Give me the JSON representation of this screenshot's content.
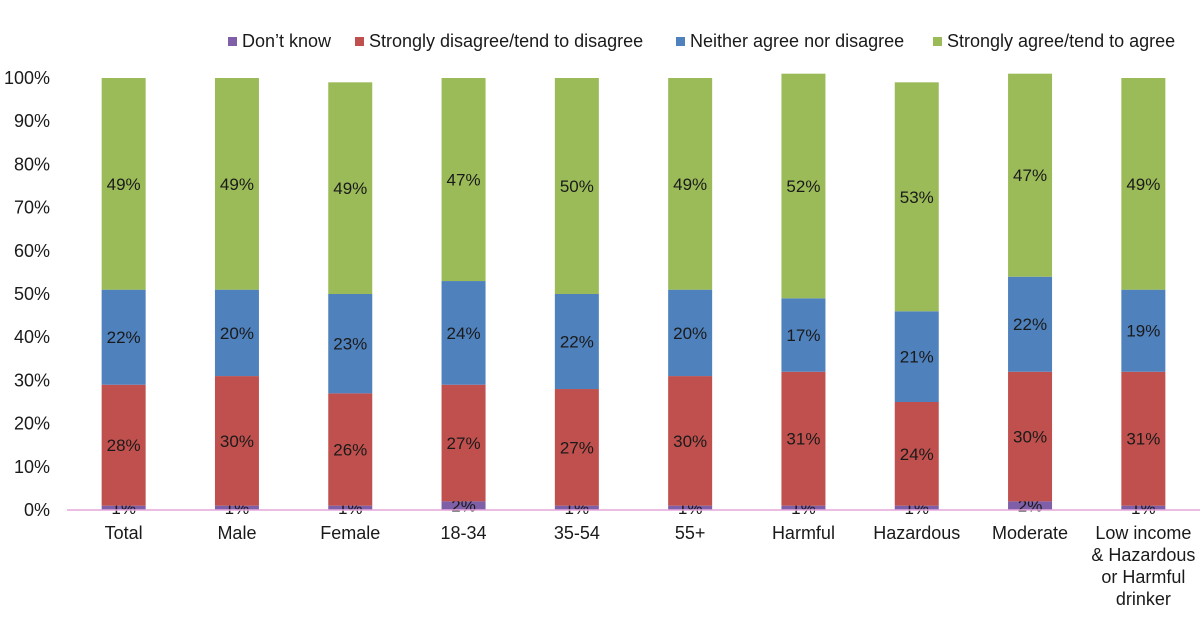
{
  "chart_data": {
    "type": "bar",
    "stacked": true,
    "title": "",
    "xlabel": "",
    "ylabel": "",
    "ylim": [
      0,
      100
    ],
    "yticks": [
      "0%",
      "10%",
      "20%",
      "30%",
      "40%",
      "50%",
      "60%",
      "70%",
      "80%",
      "90%",
      "100%"
    ],
    "categories": [
      "Total",
      "Male",
      "Female",
      "18-34",
      "35-54",
      "55+",
      "Harmful",
      "Hazardous",
      "Moderate",
      "Low income & Hazardous or Harmful drinker"
    ],
    "category_lines": [
      [
        "Total"
      ],
      [
        "Male"
      ],
      [
        "Female"
      ],
      [
        "18-34"
      ],
      [
        "35-54"
      ],
      [
        "55+"
      ],
      [
        "Harmful"
      ],
      [
        "Hazardous"
      ],
      [
        "Moderate"
      ],
      [
        "Low income",
        "& Hazardous",
        "or Harmful",
        "drinker"
      ]
    ],
    "legend_position": "top",
    "series": [
      {
        "name": "Don’t know",
        "color": "#7f5fa8",
        "values": [
          1,
          1,
          1,
          2,
          1,
          1,
          1,
          1,
          2,
          1
        ],
        "labels": [
          "1%",
          "1%",
          "1%",
          "2%",
          "1%",
          "1%",
          "1%",
          "1%",
          "2%",
          "1%"
        ]
      },
      {
        "name": "Strongly disagree/tend to disagree",
        "color": "#c0504d",
        "values": [
          28,
          30,
          26,
          27,
          27,
          30,
          31,
          24,
          30,
          31
        ],
        "labels": [
          "28%",
          "30%",
          "26%",
          "27%",
          "27%",
          "30%",
          "31%",
          "24%",
          "30%",
          "31%"
        ]
      },
      {
        "name": "Neither agree nor disagree",
        "color": "#4f81bd",
        "values": [
          22,
          20,
          23,
          24,
          22,
          20,
          17,
          21,
          22,
          19
        ],
        "labels": [
          "22%",
          "20%",
          "23%",
          "24%",
          "22%",
          "20%",
          "17%",
          "21%",
          "22%",
          "19%"
        ]
      },
      {
        "name": "Strongly agree/tend to agree",
        "color": "#9bbb59",
        "values": [
          49,
          49,
          49,
          47,
          50,
          49,
          52,
          53,
          47,
          49
        ],
        "labels": [
          "49%",
          "49%",
          "49%",
          "47%",
          "50%",
          "49%",
          "52%",
          "53%",
          "47%",
          "49%"
        ]
      }
    ]
  }
}
